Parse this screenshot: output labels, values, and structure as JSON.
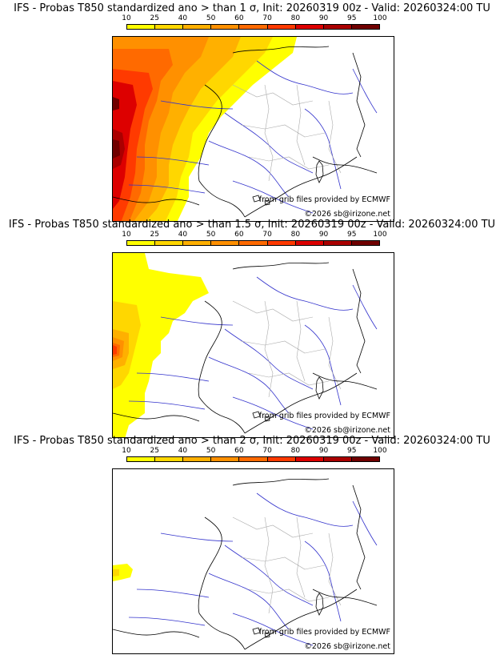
{
  "panels": [
    {
      "title": "IFS - Probas T850  standardized ano > than 1 σ, Init: 20260319 00z - Valid: 20260324:00 TU",
      "credit_source": "from grib files provided by ECMWF",
      "credit_copyright": "©2026 sb@irizone.net"
    },
    {
      "title": "IFS - Probas T850  standardized ano > than 1.5 σ, Init: 20260319 00z - Valid: 20260324:00 TU",
      "credit_source": "from grib files provided by ECMWF",
      "credit_copyright": "©2026 sb@irizone.net"
    },
    {
      "title": "IFS - Probas T850  standardized ano > than 2 σ, Init: 20260319 00z - Valid: 20260324:00 TU",
      "credit_source": "from grib files provided by ECMWF",
      "credit_copyright": "©2026 sb@irizone.net"
    }
  ],
  "legend": {
    "ticks": [
      "10",
      "25",
      "40",
      "50",
      "60",
      "70",
      "80",
      "90",
      "95",
      "100"
    ],
    "colors": [
      "#ffff00",
      "#ffd700",
      "#ffb000",
      "#ff9000",
      "#ff6a00",
      "#ff3a00",
      "#dd0000",
      "#aa0000",
      "#700000"
    ]
  },
  "map_colors": {
    "river": "#3333cc",
    "border": "#000000",
    "region": "#aaaaaa"
  }
}
